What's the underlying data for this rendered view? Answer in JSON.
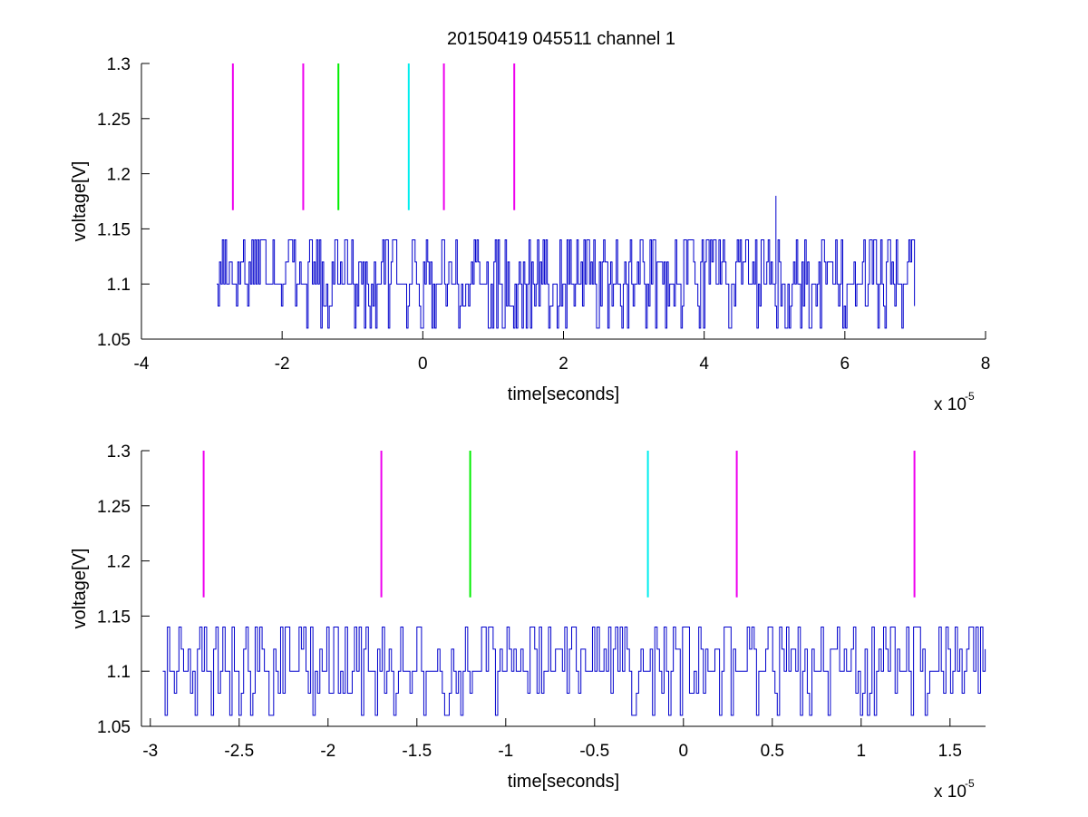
{
  "figure": {
    "title": "20150419 045511 channel 1",
    "colors": {
      "signal": "#0000cc",
      "marker_magenta": "#ee00ee",
      "marker_green": "#00ee00",
      "marker_cyan": "#00eeee",
      "axes": "#000000"
    }
  },
  "chart_data": [
    {
      "type": "line",
      "title": "20150419 045511 channel 1",
      "xlabel": "time[seconds]",
      "ylabel": "voltage[V]",
      "x_exponent_label": "x 10",
      "x_exponent": "-5",
      "xlim": [
        -4,
        8
      ],
      "ylim": [
        1.05,
        1.3
      ],
      "xticks": [
        -4,
        -2,
        0,
        2,
        4,
        6,
        8
      ],
      "xtick_labels": [
        "-4",
        "-2",
        "0",
        "2",
        "4",
        "6",
        "8"
      ],
      "yticks": [
        1.05,
        1.1,
        1.15,
        1.2,
        1.25,
        1.3
      ],
      "ytick_labels": [
        "1.05",
        "1.1",
        "1.15",
        "1.2",
        "1.25",
        "1.3"
      ],
      "grid": false,
      "signal": {
        "x_range": [
          -2.93,
          7.0
        ],
        "levels": [
          1.06,
          1.08,
          1.1,
          1.12,
          1.14
        ],
        "baseline": 1.1,
        "spikes": [
          {
            "x": 5.02,
            "y": 1.18
          }
        ]
      },
      "markers": [
        {
          "x": -2.7,
          "color": "magenta",
          "y_range": [
            1.167,
            1.3
          ]
        },
        {
          "x": -1.7,
          "color": "magenta",
          "y_range": [
            1.167,
            1.3
          ]
        },
        {
          "x": -1.2,
          "color": "green",
          "y_range": [
            1.167,
            1.3
          ]
        },
        {
          "x": -0.2,
          "color": "cyan",
          "y_range": [
            1.167,
            1.3
          ]
        },
        {
          "x": 0.3,
          "color": "magenta",
          "y_range": [
            1.167,
            1.3
          ]
        },
        {
          "x": 1.3,
          "color": "magenta",
          "y_range": [
            1.167,
            1.3
          ]
        }
      ]
    },
    {
      "type": "line",
      "title": "",
      "xlabel": "time[seconds]",
      "ylabel": "voltage[V]",
      "x_exponent_label": "x 10",
      "x_exponent": "-5",
      "xlim": [
        -3.05,
        1.7
      ],
      "ylim": [
        1.05,
        1.3
      ],
      "xticks": [
        -3,
        -2.5,
        -2,
        -1.5,
        -1,
        -0.5,
        0,
        0.5,
        1,
        1.5
      ],
      "xtick_labels": [
        "-3",
        "-2.5",
        "-2",
        "-1.5",
        "-1",
        "-0.5",
        "0",
        "0.5",
        "1",
        "1.5"
      ],
      "yticks": [
        1.05,
        1.1,
        1.15,
        1.2,
        1.25,
        1.3
      ],
      "ytick_labels": [
        "1.05",
        "1.1",
        "1.15",
        "1.2",
        "1.25",
        "1.3"
      ],
      "grid": false,
      "signal": {
        "x_range": [
          -2.93,
          1.7
        ],
        "levels": [
          1.06,
          1.08,
          1.1,
          1.12,
          1.14
        ],
        "baseline": 1.1
      },
      "markers": [
        {
          "x": -2.7,
          "color": "magenta",
          "y_range": [
            1.167,
            1.3
          ]
        },
        {
          "x": -1.7,
          "color": "magenta",
          "y_range": [
            1.167,
            1.3
          ]
        },
        {
          "x": -1.2,
          "color": "green",
          "y_range": [
            1.167,
            1.3
          ]
        },
        {
          "x": -0.2,
          "color": "cyan",
          "y_range": [
            1.167,
            1.3
          ]
        },
        {
          "x": 0.3,
          "color": "magenta",
          "y_range": [
            1.167,
            1.3
          ]
        },
        {
          "x": 1.3,
          "color": "magenta",
          "y_range": [
            1.167,
            1.3
          ]
        }
      ]
    }
  ]
}
